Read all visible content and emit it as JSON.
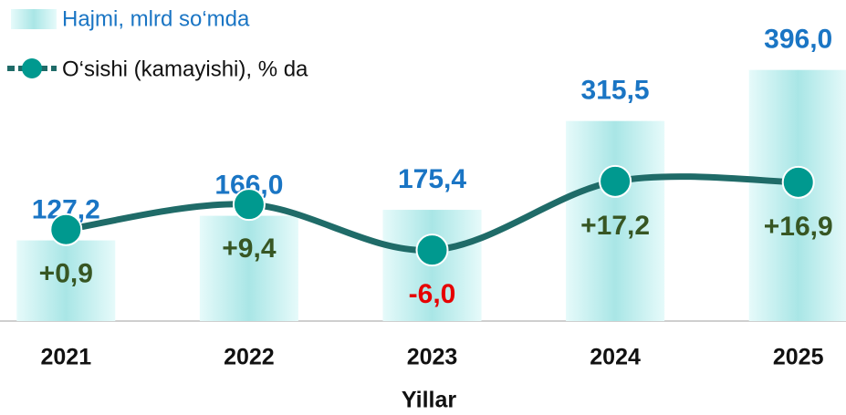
{
  "chart_data": {
    "type": "bar",
    "categories": [
      "2021",
      "2022",
      "2023",
      "2024",
      "2025"
    ],
    "xlabel": "Yillar",
    "ylim": [
      0,
      420
    ],
    "y2lim": [
      -30,
      60
    ],
    "series": [
      {
        "name": "Hajmi, mlrd so‘mda",
        "type": "bar",
        "color": "#bfeeee",
        "label_color": "#1a75c4",
        "values": [
          127.2,
          166.0,
          175.4,
          315.5,
          396.0
        ],
        "value_labels": [
          "127,2",
          "166,0",
          "175,4",
          "315,5",
          "396,0"
        ]
      },
      {
        "name": "O‘sishi (kamayishi), % da",
        "type": "line",
        "axis": "y2",
        "color": "#1f6b68",
        "marker_color": "#00998f",
        "label_color": "#375623",
        "negative_label_color": "#e60000",
        "values": [
          0.9,
          9.4,
          -6.0,
          17.2,
          16.9
        ],
        "value_labels": [
          "+0,9",
          "+9,4",
          "-6,0",
          "+17,2",
          "+16,9"
        ]
      }
    ]
  }
}
